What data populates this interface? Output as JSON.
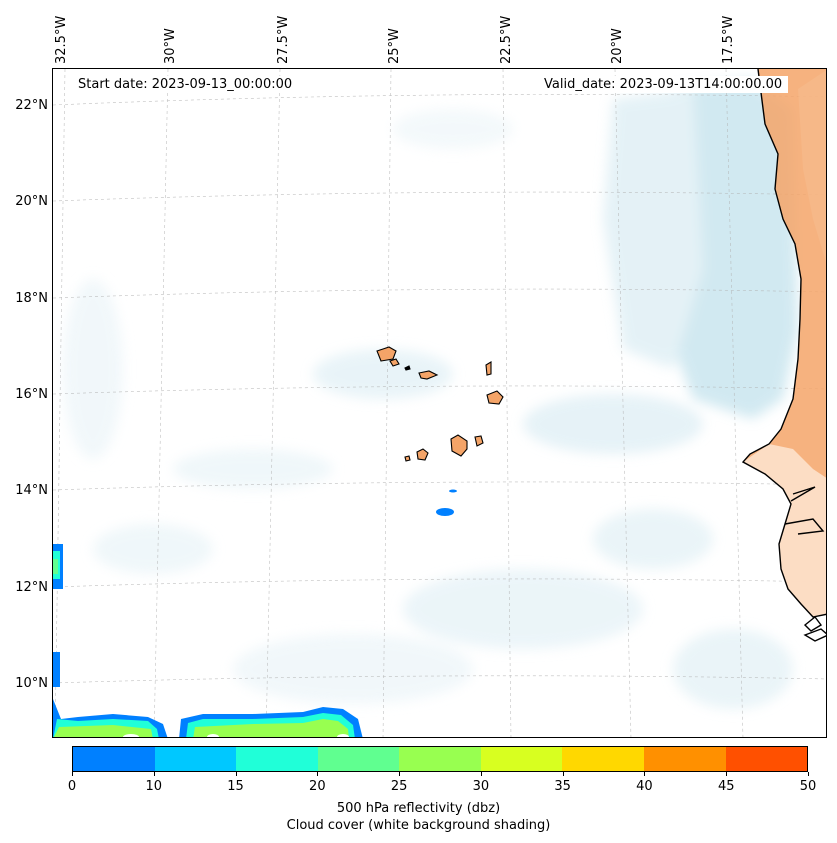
{
  "map": {
    "start_date": "Start date: 2023-09-13_00:00:00",
    "valid_date": "Valid_date: 2023-09-13T14:00:00.00",
    "lon_labels": [
      "32.5°W",
      "30°W",
      "27.5°W",
      "25°W",
      "22.5°W",
      "20°W",
      "17.5°W"
    ],
    "lat_labels": [
      "22°N",
      "20°N",
      "18°N",
      "16°N",
      "14°N",
      "12°N",
      "10°N"
    ],
    "colors": {
      "land": "#f4a468",
      "cloud": "#add8e6",
      "coast": "#000000",
      "grid": "#b0b0b0"
    }
  },
  "colorbar": {
    "ticks": [
      "0",
      "10",
      "15",
      "20",
      "25",
      "30",
      "35",
      "40",
      "45",
      "50"
    ],
    "colors": [
      "#0080ff",
      "#00c8ff",
      "#20ffd8",
      "#60ff90",
      "#98ff50",
      "#d8ff20",
      "#ffd800",
      "#ff9000",
      "#ff5000"
    ],
    "label_line1": "500 hPa reflectivity (dbz)",
    "label_line2": "Cloud cover (white background shading)"
  }
}
